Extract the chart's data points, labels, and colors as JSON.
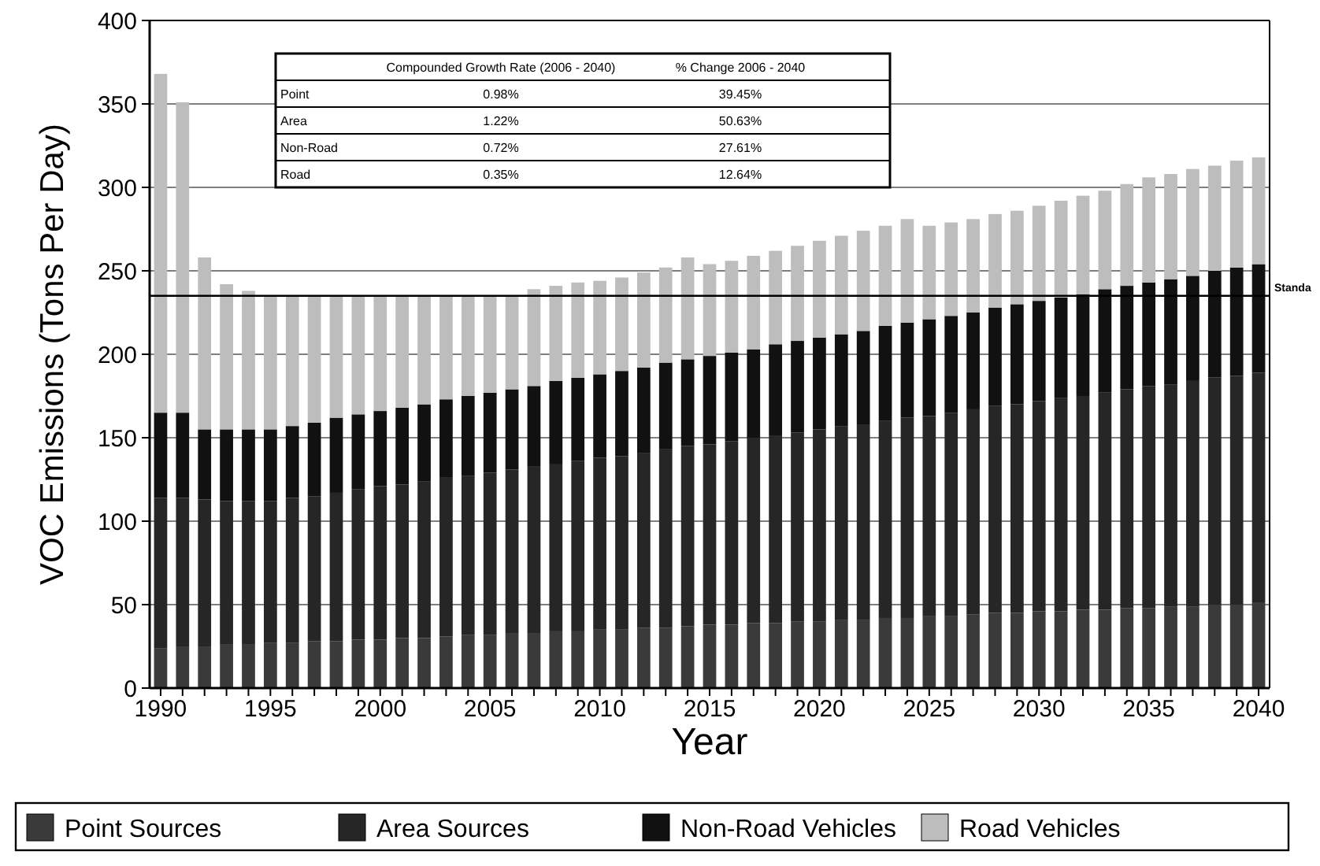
{
  "chart_data": {
    "type": "bar",
    "stacked": true,
    "xlabel": "Year",
    "ylabel": "VOC Emissions (Tons Per Day)",
    "x": [
      1990,
      1991,
      1992,
      1993,
      1994,
      1995,
      1996,
      1997,
      1998,
      1999,
      2000,
      2001,
      2002,
      2003,
      2004,
      2005,
      2006,
      2007,
      2008,
      2009,
      2010,
      2011,
      2012,
      2013,
      2014,
      2015,
      2016,
      2017,
      2018,
      2019,
      2020,
      2021,
      2022,
      2023,
      2024,
      2025,
      2026,
      2027,
      2028,
      2029,
      2030,
      2031,
      2032,
      2033,
      2034,
      2035,
      2036,
      2037,
      2038,
      2039,
      2040
    ],
    "xlim": [
      1989.5,
      2040.5
    ],
    "xticks": [
      1990,
      1995,
      2000,
      2005,
      2010,
      2015,
      2020,
      2025,
      2030,
      2035,
      2040
    ],
    "ylim": [
      0,
      400
    ],
    "yticks": [
      0,
      50,
      100,
      150,
      200,
      250,
      300,
      350,
      400
    ],
    "grid": "y",
    "legend": "bottom",
    "series": [
      {
        "name": "Point Sources",
        "color": "#3a3a3a",
        "values": [
          24,
          25,
          25,
          26,
          26,
          27,
          27,
          28,
          28,
          29,
          29,
          30,
          30,
          31,
          32,
          32,
          33,
          33,
          34,
          34,
          35,
          35,
          36,
          36,
          37,
          38,
          38,
          39,
          39,
          40,
          40,
          41,
          41,
          42,
          42,
          43,
          43,
          44,
          45,
          45,
          46,
          46,
          47,
          47,
          48,
          48,
          49,
          49,
          50,
          50,
          51
        ]
      },
      {
        "name": "Area Sources",
        "color": "#262626",
        "values": [
          90,
          89,
          88,
          86,
          86,
          85,
          87,
          87,
          89,
          90,
          92,
          92,
          94,
          95,
          95,
          97,
          98,
          100,
          100,
          102,
          103,
          104,
          105,
          107,
          108,
          108,
          110,
          111,
          112,
          113,
          115,
          116,
          117,
          118,
          120,
          120,
          122,
          123,
          124,
          125,
          126,
          128,
          128,
          130,
          131,
          133,
          133,
          135,
          136,
          137,
          138
        ]
      },
      {
        "name": "Non-Road Vehicles",
        "color": "#111111",
        "values": [
          51,
          51,
          42,
          43,
          43,
          43,
          43,
          44,
          45,
          45,
          45,
          46,
          46,
          47,
          48,
          48,
          48,
          48,
          50,
          50,
          50,
          51,
          51,
          52,
          52,
          53,
          53,
          53,
          55,
          55,
          55,
          55,
          56,
          57,
          57,
          58,
          58,
          58,
          59,
          60,
          60,
          60,
          61,
          62,
          62,
          62,
          63,
          63,
          64,
          65,
          65
        ]
      },
      {
        "name": "Road Vehicles",
        "color": "#bdbdbd",
        "values": [
          203,
          186,
          103,
          87,
          83,
          80,
          78,
          76,
          73,
          71,
          69,
          67,
          65,
          62,
          60,
          58,
          56,
          58,
          57,
          57,
          56,
          56,
          57,
          57,
          61,
          55,
          55,
          56,
          56,
          57,
          58,
          59,
          60,
          60,
          62,
          56,
          56,
          56,
          56,
          56,
          57,
          58,
          59,
          59,
          61,
          63,
          63,
          64,
          63,
          64,
          64
        ]
      }
    ],
    "ref_lines": [
      {
        "axis": "y",
        "value": 235,
        "label": "Standa",
        "color": "#000000"
      }
    ],
    "annotations": [
      "Compounded Growth Rate (2006 - 2040)",
      "% Change 2006 - 2040",
      "Point",
      "0.98%",
      "39.45%",
      "Area",
      "1.22%",
      "50.63%",
      "Non-Road",
      "0.72%",
      "27.61%",
      "Road",
      "0.35%",
      "12.64%"
    ]
  }
}
